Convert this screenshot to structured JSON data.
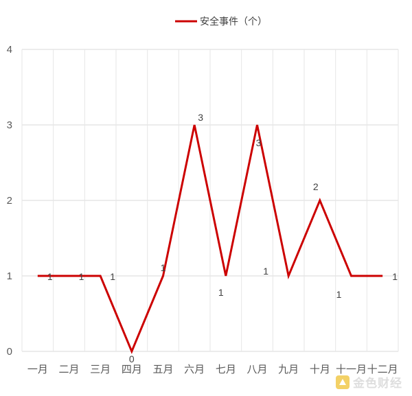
{
  "chart_data": {
    "type": "line",
    "categories": [
      "一月",
      "二月",
      "三月",
      "四月",
      "五月",
      "六月",
      "七月",
      "八月",
      "九月",
      "十月",
      "十一月",
      "十二月"
    ],
    "series": [
      {
        "name": "安全事件（个）",
        "values": [
          1,
          1,
          1,
          0,
          1,
          3,
          1,
          3,
          1,
          2,
          1,
          1
        ],
        "color": "#cc0000"
      }
    ],
    "ylim": [
      0,
      4
    ],
    "yticks": [
      0,
      1,
      2,
      3,
      4
    ],
    "grid": true,
    "legend_position": "top-center",
    "data_labels": true
  },
  "watermark": {
    "text": "金色财经"
  }
}
